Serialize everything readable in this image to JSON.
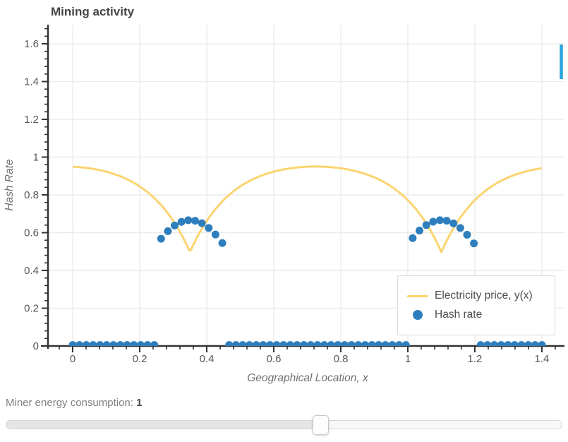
{
  "figure": {
    "title": "Mining activity",
    "x_axis": {
      "label": "Geographical Location, x",
      "range": [
        -0.0737,
        1.4674
      ],
      "major_ticks": [
        0,
        0.2,
        0.4,
        0.6,
        0.8,
        1,
        1.2,
        1.4
      ],
      "tick_labels": [
        "0",
        "0.2",
        "0.4",
        "0.6",
        "0.8",
        "1",
        "1.2",
        "1.4"
      ],
      "minor_step": 0.04
    },
    "y_axis": {
      "label": "Hash Rate",
      "range": [
        0,
        1.701
      ],
      "major_ticks": [
        0,
        0.2,
        0.4,
        0.6,
        0.8,
        1,
        1.2,
        1.4,
        1.6
      ],
      "tick_labels": [
        "0",
        "0.2",
        "0.4",
        "0.6",
        "0.8",
        "1",
        "1.2",
        "1.4",
        "1.6"
      ],
      "minor_step": 0.04
    },
    "legend": {
      "items": [
        {
          "label": "Electricity price, y(x)",
          "type": "line",
          "color": "#fbd470"
        },
        {
          "label": "Hash rate",
          "type": "dot",
          "color": "#2e7ebd"
        }
      ]
    },
    "colors": {
      "axis": "#333333",
      "grid": "#ebebeb",
      "tick_label": "#565656",
      "title": "#464646",
      "edge_mark": "#2ba3dd"
    }
  },
  "chart_data": {
    "type": "line+scatter",
    "title": "Mining activity",
    "xlabel": "Geographical Location, x",
    "ylabel": "Hash Rate",
    "xlim": [
      -0.0737,
      1.4674
    ],
    "ylim": [
      0,
      1.701
    ],
    "grid": true,
    "legend_position": "lower right",
    "series": [
      {
        "name": "Electricity price, y(x)",
        "type": "line",
        "color": "#fbd470",
        "domain": [
          0,
          1.4
        ],
        "model": "y(x) = base - amp * sum_c exp(-decay*|x-c|)",
        "params": {
          "base": 1,
          "amp": 0.5,
          "decay": 8,
          "centers": [
            -0.4,
            0.35,
            1.1,
            1.85
          ]
        },
        "key_points": {
          "plateau_y": 0.94,
          "minima": [
            {
              "x": 0.35,
              "y": 0.5
            },
            {
              "x": 1.1,
              "y": 0.5
            }
          ],
          "endpoints_y": [
            0.94,
            0.94
          ]
        }
      },
      {
        "name": "Hash rate",
        "type": "scatter",
        "color": "#2e7ebd",
        "x": [
          0,
          0.0203,
          0.0406,
          0.0609,
          0.0812,
          0.1014,
          0.1217,
          0.142,
          0.1623,
          0.1826,
          0.2029,
          0.2232,
          0.2435,
          0.2638,
          0.2841,
          0.3043,
          0.3246,
          0.3449,
          0.3652,
          0.3855,
          0.4058,
          0.4261,
          0.4464,
          0.4667,
          0.487,
          0.5072,
          0.5275,
          0.5478,
          0.5681,
          0.5884,
          0.6087,
          0.629,
          0.6493,
          0.6696,
          0.6899,
          0.7101,
          0.7304,
          0.7507,
          0.771,
          0.7913,
          0.8116,
          0.8319,
          0.8522,
          0.8725,
          0.8928,
          0.913,
          0.9333,
          0.9536,
          0.9739,
          0.9942,
          1.0145,
          1.0348,
          1.0551,
          1.0754,
          1.0957,
          1.1159,
          1.1362,
          1.1565,
          1.1768,
          1.1971,
          1.2174,
          1.2377,
          1.258,
          1.2783,
          1.2986,
          1.3188,
          1.3391,
          1.3594,
          1.3797,
          1.4
        ],
        "y": [
          0.005,
          0.005,
          0.005,
          0.005,
          0.005,
          0.005,
          0.005,
          0.005,
          0.005,
          0.005,
          0.005,
          0.005,
          0.005,
          0.568,
          0.608,
          0.638,
          0.657,
          0.666,
          0.663,
          0.65,
          0.625,
          0.59,
          0.545,
          0.005,
          0.005,
          0.005,
          0.005,
          0.005,
          0.005,
          0.005,
          0.005,
          0.005,
          0.005,
          0.005,
          0.005,
          0.005,
          0.005,
          0.005,
          0.005,
          0.005,
          0.005,
          0.005,
          0.005,
          0.005,
          0.005,
          0.005,
          0.005,
          0.005,
          0.005,
          0.005,
          0.571,
          0.611,
          0.64,
          0.658,
          0.666,
          0.663,
          0.649,
          0.625,
          0.589,
          0.543,
          0.005,
          0.005,
          0.005,
          0.005,
          0.005,
          0.005,
          0.005,
          0.005,
          0.005,
          0.005
        ]
      }
    ],
    "edge_mark": {
      "x": 1.458,
      "y1": 1.413,
      "y2": 1.596,
      "color": "#2ba3dd"
    }
  },
  "widget": {
    "slider": {
      "label": "Miner energy consumption:",
      "value": "1",
      "percent": 56.5
    }
  }
}
